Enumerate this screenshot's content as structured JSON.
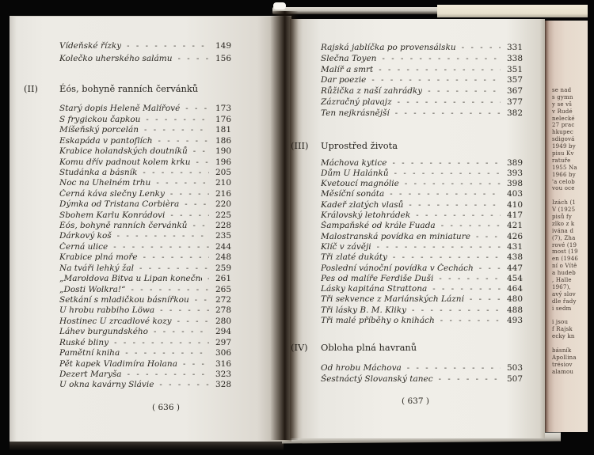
{
  "left_page": {
    "pre_entries": [
      {
        "t": "Vídeňské řízky",
        "p": "149"
      },
      {
        "t": "Kolečko uherského salámu",
        "p": "156"
      }
    ],
    "section_label": "(II)",
    "section_title": "Éós, bohyně ranních červánků",
    "entries": [
      {
        "t": "Starý dopis Heleně Malířové",
        "p": "173"
      },
      {
        "t": "S frygickou čapkou",
        "p": "176"
      },
      {
        "t": "Míšeňský porcelán",
        "p": "181"
      },
      {
        "t": "Eskapáda v pantoflích",
        "p": "186"
      },
      {
        "t": "Krabice holandských doutníků",
        "p": "190"
      },
      {
        "t": "Komu dřív padnout kolem krku",
        "p": "196"
      },
      {
        "t": "Studánka a básník",
        "p": "205"
      },
      {
        "t": "Noc na Uhelném trhu",
        "p": "210"
      },
      {
        "t": "Černá káva slečny Lenky",
        "p": "216"
      },
      {
        "t": "Dýmka od Tristana Corbièra",
        "p": "220"
      },
      {
        "t": "Sbohem Karlu Konrádovi",
        "p": "225"
      },
      {
        "t": "Éós, bohyně ranních červánků",
        "p": "228"
      },
      {
        "t": "Dárkový koš",
        "p": "235"
      },
      {
        "t": "Černá ulice",
        "p": "244"
      },
      {
        "t": "Krabice plná moře",
        "p": "248"
      },
      {
        "t": "Na tváři lehký žal",
        "p": "259"
      },
      {
        "t": "„Maroldova Bitva u Lipan konečně zničena“",
        "p": "261"
      },
      {
        "t": "„Dosti Wolkra!“",
        "p": "265"
      },
      {
        "t": "Setkání s mladičkou básnířkou",
        "p": "272"
      },
      {
        "t": "U hrobu rabbiho Löwa",
        "p": "278"
      },
      {
        "t": "Hostinec U zrcadlové kozy",
        "p": "280"
      },
      {
        "t": "Láhev burgundského",
        "p": "294"
      },
      {
        "t": "Ruské bliny",
        "p": "297"
      },
      {
        "t": "Pamětní kniha",
        "p": "306"
      },
      {
        "t": "Pět kapek Vladimíra Holana",
        "p": "316"
      },
      {
        "t": "Dezert Maryša",
        "p": "323"
      },
      {
        "t": "U okna kavárny Slávie",
        "p": "328"
      }
    ],
    "folio": "( 636 )"
  },
  "right_page": {
    "top_entries": [
      {
        "t": "Rajská jablíčka po provensálsku",
        "p": "331"
      },
      {
        "t": "Slečna Toyen",
        "p": "338"
      },
      {
        "t": "Malíř a smrt",
        "p": "351"
      },
      {
        "t": "Dar poezie",
        "p": "357"
      },
      {
        "t": "Růžička z naší zahrádky",
        "p": "367"
      },
      {
        "t": "Zázračný plavajz",
        "p": "377"
      },
      {
        "t": "Ten nejkrásnější",
        "p": "382"
      }
    ],
    "section3_label": "(III)",
    "section3_title": "Uprostřed života",
    "section3_entries": [
      {
        "t": "Máchova kytice",
        "p": "389"
      },
      {
        "t": "Dům U Halánků",
        "p": "393"
      },
      {
        "t": "Kvetoucí magnólie",
        "p": "398"
      },
      {
        "t": "Měsíční sonáta",
        "p": "403"
      },
      {
        "t": "Kadeř zlatých vlasů",
        "p": "410"
      },
      {
        "t": "Královský letohrádek",
        "p": "417"
      },
      {
        "t": "Šampaňské od krále Fuada",
        "p": "421"
      },
      {
        "t": "Malostranská povídka en miniature",
        "p": "426"
      },
      {
        "t": "Klíč v závěji",
        "p": "431"
      },
      {
        "t": "Tři zlaté dukáty",
        "p": "438"
      },
      {
        "t": "Poslední vánoční povídka v Čechách",
        "p": "447"
      },
      {
        "t": "Pes od malíře Ferdiše Duši",
        "p": "454"
      },
      {
        "t": "Lásky kapitána Strattona",
        "p": "464"
      },
      {
        "t": "Tři sekvence z Mariánských Lázní",
        "p": "480"
      },
      {
        "t": "Tři lásky B. M. Kliky",
        "p": "488"
      },
      {
        "t": "Tři malé příběhy o knihách",
        "p": "493"
      }
    ],
    "section4_label": "(IV)",
    "section4_title": "Obloha plná havranů",
    "section4_entries": [
      {
        "t": "Od hrobu Máchova",
        "p": "503"
      },
      {
        "t": "Šestnáctý Slovanský tanec",
        "p": "507"
      }
    ],
    "folio": "( 637 )"
  },
  "edge_page": {
    "fragments": [
      "se nad",
      "s gymn",
      "y se vš",
      "v Rudé",
      "nelecké",
      "27 prac",
      "hkupec",
      "sdigová",
      "1949 by",
      "pisu Kv",
      "ratuře",
      "1955 Na",
      "1966 by",
      "'a celob",
      "vou oce",
      "",
      "Izách (1",
      "V (1925",
      "pisů fy",
      "zlko z k",
      "ivána d",
      "(7), Zha",
      "rové (19",
      "most (19",
      "en (1946",
      "ní o Vítě",
      "a hudeb",
      ", Halle",
      "1967),",
      "avý slov",
      "dle řady",
      "i sedm",
      "",
      "i jsou",
      "f Rajsk",
      "ecky kn",
      "",
      "básník",
      "Apollina",
      "trésiov",
      "alamou"
    ]
  }
}
